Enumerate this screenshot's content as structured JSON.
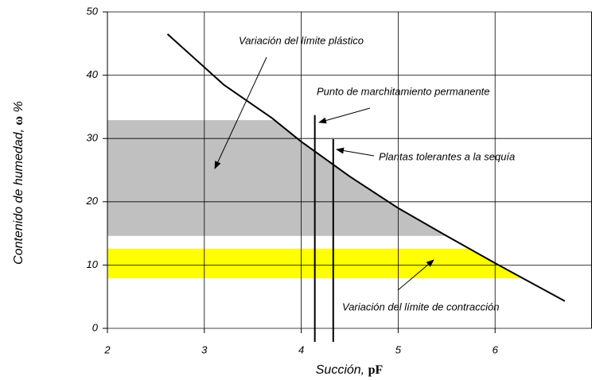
{
  "chart_data": {
    "type": "line",
    "xlabel": [
      "Succión,",
      "pF"
    ],
    "ylabel": [
      "Contenido de humedad,",
      "ω",
      "%"
    ],
    "xlim": [
      2,
      7
    ],
    "ylim": [
      0,
      50
    ],
    "xticks": [
      2,
      3,
      4,
      5,
      6
    ],
    "yticks": [
      0,
      10,
      20,
      30,
      40,
      50
    ],
    "grid": true,
    "series": [
      {
        "name": "Succión",
        "color": "#000000",
        "x": [
          2.62,
          3.2,
          3.7,
          4.0,
          4.5,
          5.0,
          5.5,
          6.0,
          6.72
        ],
        "values": [
          46.5,
          38.5,
          33.2,
          29.5,
          24.0,
          19.0,
          14.6,
          10.3,
          4.3
        ]
      }
    ],
    "bands": [
      {
        "color": "#c0c0c0",
        "ymin": 14.6,
        "ymax": 32.9
      },
      {
        "color": "#ffff00",
        "ymin": 7.9,
        "ymax": 12.6
      }
    ],
    "vlines": [
      {
        "x": 4.14,
        "top": 33.7
      },
      {
        "x": 4.33,
        "top": 29.9
      }
    ],
    "annotations": [
      "Variación del límite plástico",
      "Punto de marchitamiento permanente",
      "Plantas tolerantes a la sequía",
      "Variación del límite de contracción"
    ]
  }
}
